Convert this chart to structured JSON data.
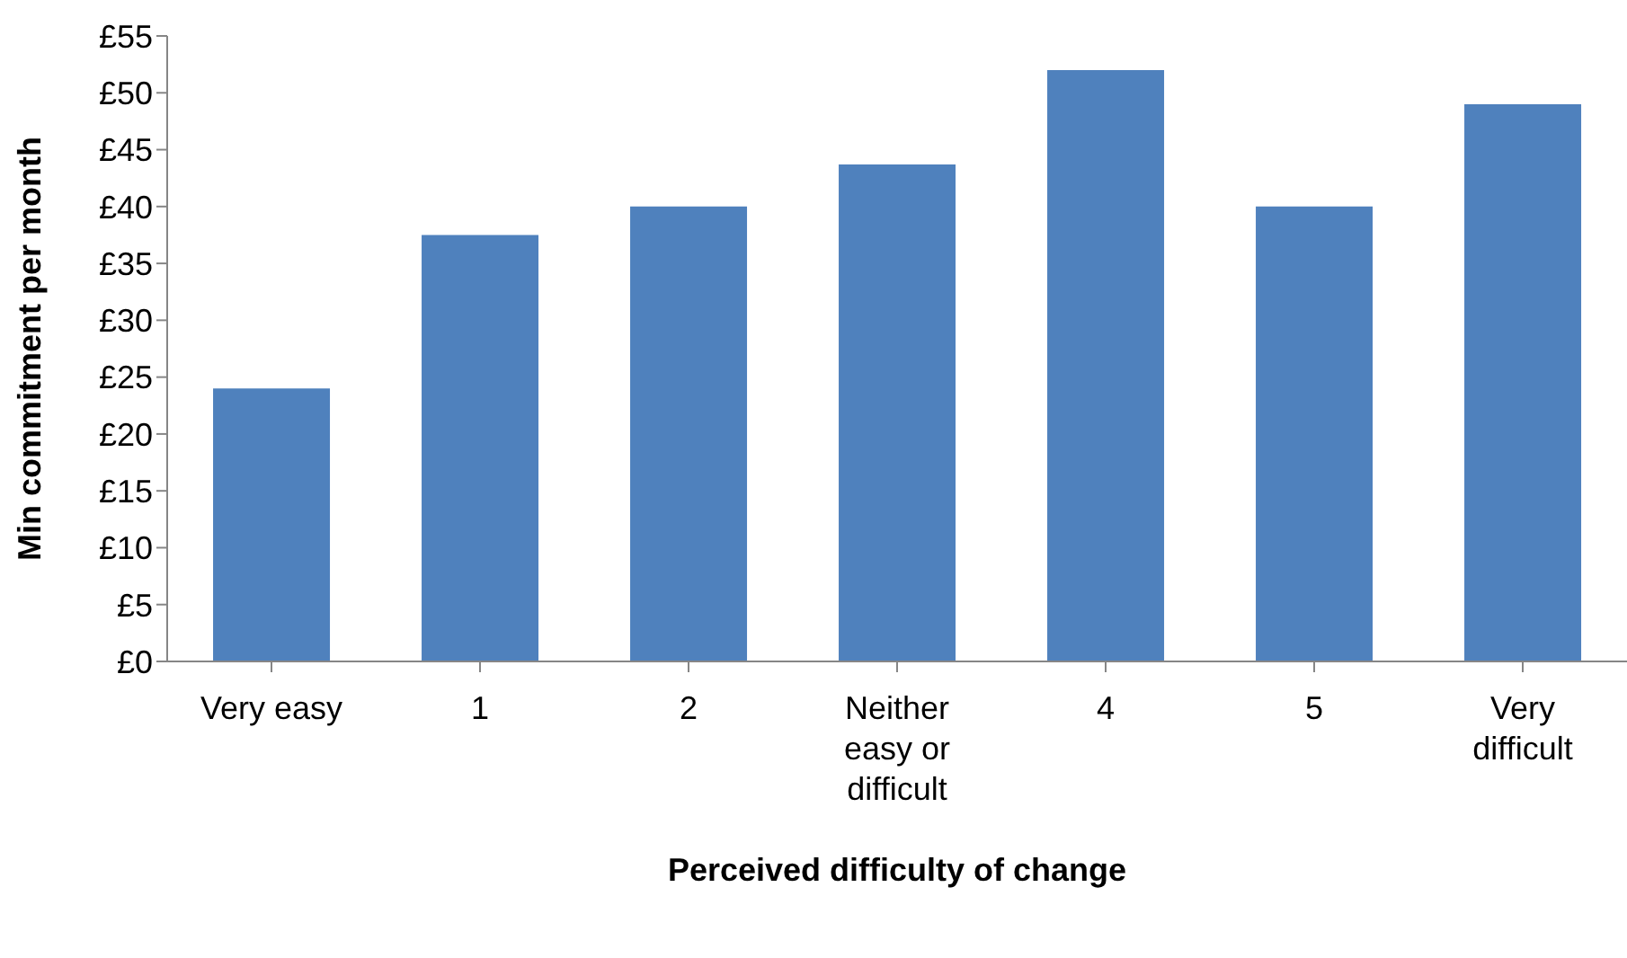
{
  "chart_data": {
    "type": "bar",
    "xlabel": "Perceived difficulty of change",
    "ylabel": "Min commitment per month",
    "categories": [
      "Very easy",
      "1",
      "2",
      "Neither easy or difficult",
      "4",
      "5",
      "Very difficult"
    ],
    "values": [
      24,
      37.5,
      40,
      43.7,
      52,
      40,
      49
    ],
    "color": "#4f81bd",
    "ylim": [
      0,
      55
    ],
    "yticks": [
      {
        "value": 0,
        "label": "£0"
      },
      {
        "value": 5,
        "label": "£5"
      },
      {
        "value": 10,
        "label": "£10"
      },
      {
        "value": 15,
        "label": "£15"
      },
      {
        "value": 20,
        "label": "£20"
      },
      {
        "value": 25,
        "label": "£25"
      },
      {
        "value": 30,
        "label": "£30"
      },
      {
        "value": 35,
        "label": "£35"
      },
      {
        "value": 40,
        "label": "£40"
      },
      {
        "value": 45,
        "label": "£45"
      },
      {
        "value": 50,
        "label": "£50"
      },
      {
        "value": 55,
        "label": "£55"
      }
    ],
    "grid": false,
    "legend": false
  }
}
